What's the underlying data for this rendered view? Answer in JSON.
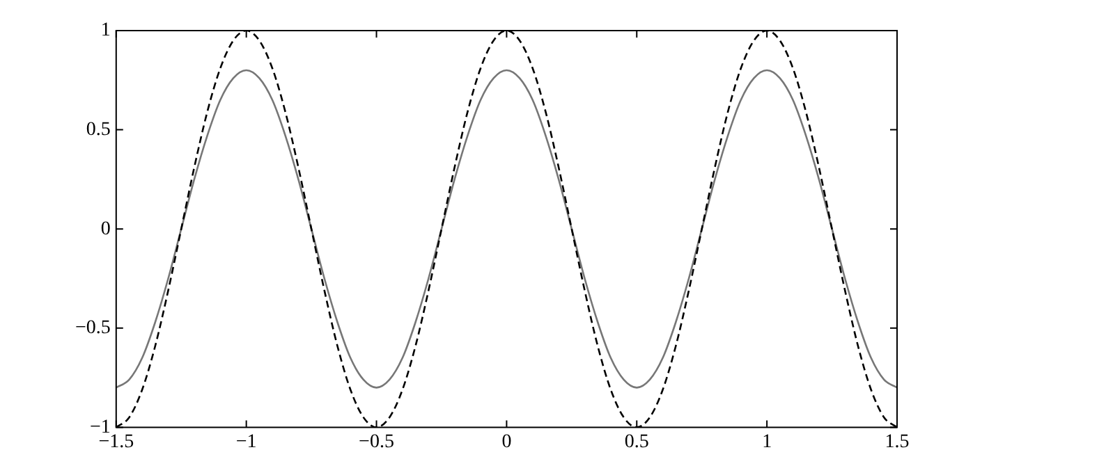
{
  "chart_data": {
    "type": "line",
    "x": [
      -1.5,
      -1.45,
      -1.4,
      -1.35,
      -1.3,
      -1.25,
      -1.2,
      -1.15,
      -1.1,
      -1.05,
      -1,
      -0.95,
      -0.9,
      -0.85,
      -0.8,
      -0.75,
      -0.7,
      -0.65,
      -0.6,
      -0.55,
      -0.5,
      -0.45,
      -0.4,
      -0.35,
      -0.3,
      -0.25,
      -0.2,
      -0.15,
      -0.1,
      -0.05,
      0,
      0.05,
      0.1,
      0.15,
      0.2,
      0.25,
      0.3,
      0.35,
      0.4,
      0.45,
      0.5,
      0.55,
      0.6,
      0.65,
      0.7,
      0.75,
      0.8,
      0.85,
      0.9,
      0.95,
      1,
      1.05,
      1.1,
      1.15,
      1.2,
      1.25,
      1.3,
      1.35,
      1.4,
      1.45,
      1.5
    ],
    "series": [
      {
        "color": "#000000",
        "line_style": "dashed",
        "values": [
          -1,
          -0.95,
          -0.81,
          -0.59,
          -0.31,
          0,
          0.31,
          0.59,
          0.81,
          0.95,
          1,
          0.95,
          0.81,
          0.59,
          0.31,
          0,
          -0.31,
          -0.59,
          -0.81,
          -0.95,
          -1,
          -0.95,
          -0.81,
          -0.59,
          -0.31,
          0,
          0.31,
          0.59,
          0.81,
          0.95,
          1,
          0.95,
          0.81,
          0.59,
          0.31,
          0,
          -0.31,
          -0.59,
          -0.81,
          -0.95,
          -1,
          -0.95,
          -0.81,
          -0.59,
          -0.31,
          0,
          0.31,
          0.59,
          0.81,
          0.95,
          1,
          0.95,
          0.81,
          0.59,
          0.31,
          0,
          -0.31,
          -0.59,
          -0.81,
          -0.95,
          -1
        ]
      },
      {
        "color": "#777777",
        "line_style": "solid",
        "values": [
          -0.8,
          -0.76,
          -0.65,
          -0.47,
          -0.25,
          0,
          0.25,
          0.47,
          0.65,
          0.76,
          0.8,
          0.76,
          0.65,
          0.47,
          0.25,
          0,
          -0.25,
          -0.47,
          -0.65,
          -0.76,
          -0.8,
          -0.76,
          -0.65,
          -0.47,
          -0.25,
          0,
          0.25,
          0.47,
          0.65,
          0.76,
          0.8,
          0.76,
          0.65,
          0.47,
          0.25,
          0,
          -0.25,
          -0.47,
          -0.65,
          -0.76,
          -0.8,
          -0.76,
          -0.65,
          -0.47,
          -0.25,
          0,
          0.25,
          0.47,
          0.65,
          0.76,
          0.8,
          0.76,
          0.65,
          0.47,
          0.25,
          0,
          -0.25,
          -0.47,
          -0.65,
          -0.76,
          -0.8
        ]
      }
    ],
    "xlim": [
      -1.5,
      1.5
    ],
    "xticks": [
      {
        "value": -1.5,
        "label": "−1.5"
      },
      {
        "value": -1,
        "label": "−1"
      },
      {
        "value": -0.5,
        "label": "−0.5"
      },
      0,
      0.5,
      1,
      1.5
    ],
    "ylim": [
      -1,
      1
    ],
    "yticks": [
      {
        "value": -1,
        "label": "−1"
      },
      {
        "value": -0.5,
        "label": "−0.5"
      },
      0,
      0.5,
      1
    ],
    "grid": false,
    "legend": false,
    "marker": "none"
  }
}
